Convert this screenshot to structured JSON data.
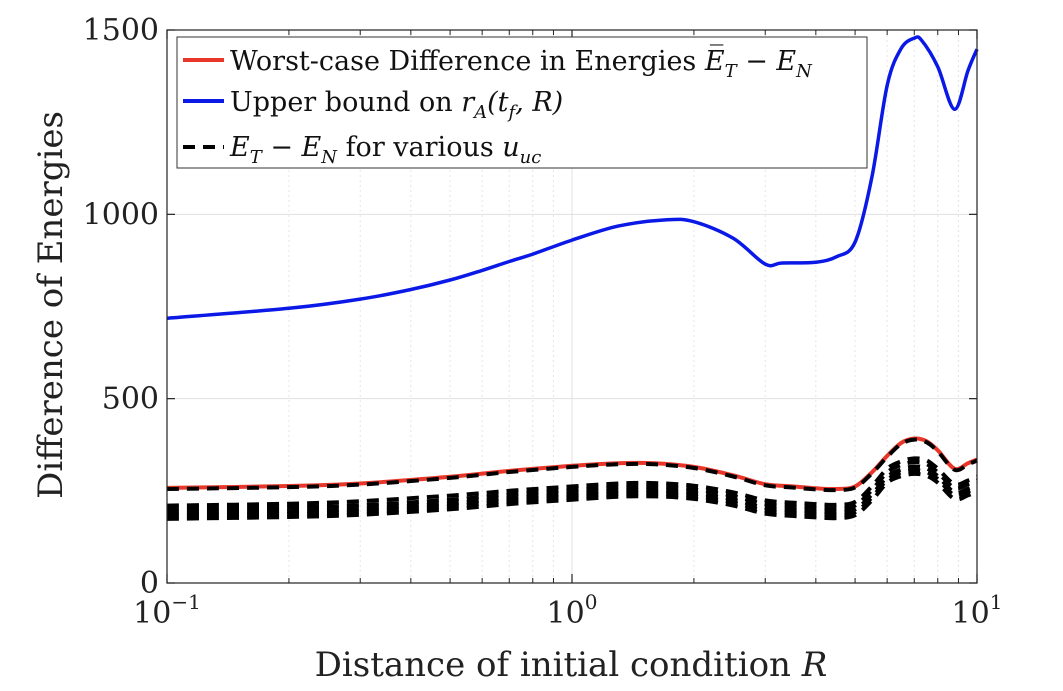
{
  "chart_data": {
    "type": "line",
    "title": "",
    "xlabel_text": "Distance of initial condition ",
    "xlabel_var": "R",
    "ylabel": "Difference of Energies",
    "x_scale": "log",
    "xlim": [
      0.1,
      10
    ],
    "ylim": [
      0,
      1500
    ],
    "x_ticks": [
      0.1,
      1,
      10
    ],
    "x_tick_base": "10",
    "x_tick_exponents": [
      "−1",
      "0",
      "1"
    ],
    "y_ticks": [
      0,
      500,
      1000,
      1500
    ],
    "y_tick_labels": [
      "0",
      "500",
      "1000",
      "1500"
    ],
    "grid": true,
    "legend_position": "top-left",
    "legend": [
      {
        "text": "Worst-case Difference in Energies ",
        "math": "E̅",
        "math_sub": "T",
        "math_rest": " − E",
        "math_sub2": "N"
      },
      {
        "text": "Upper bound on ",
        "math": "r",
        "math_sub": "A",
        "math_rest": "(t",
        "math_sub2": "f",
        "math_tail": ", R)"
      },
      {
        "text": " for various ",
        "lead_math": "E",
        "lead_sub": "T",
        "lead_rest": " − E",
        "lead_sub2": "N",
        "trail_math": "u",
        "trail_sub": "uc"
      }
    ],
    "colors": {
      "worst_case": "#e8372a",
      "upper_bound": "#0a19e6",
      "various": "#000000"
    },
    "series": [
      {
        "id": "upper_bound",
        "style": "solid",
        "x": [
          0.1,
          0.2,
          0.3,
          0.4,
          0.5,
          0.6,
          0.7,
          0.8,
          1.0,
          1.3,
          1.7,
          2.0,
          2.5,
          3.0,
          3.3,
          4.0,
          4.5,
          5.0,
          5.5,
          6.0,
          6.5,
          7.0,
          7.3,
          8.0,
          8.8,
          9.5,
          10.0
        ],
        "y": [
          718,
          745,
          770,
          796,
          822,
          848,
          872,
          892,
          930,
          968,
          985,
          980,
          935,
          865,
          868,
          870,
          885,
          925,
          1100,
          1350,
          1450,
          1478,
          1472,
          1400,
          1285,
          1390,
          1448
        ]
      },
      {
        "id": "worst_case",
        "style": "solid",
        "x": [
          0.1,
          0.2,
          0.3,
          0.5,
          0.7,
          1.0,
          1.3,
          1.6,
          2.0,
          2.5,
          3.0,
          3.5,
          4.0,
          4.5,
          5.0,
          5.5,
          6.0,
          6.5,
          7.0,
          7.5,
          8.0,
          8.8,
          9.5,
          10.0
        ],
        "y": [
          258,
          263,
          270,
          288,
          304,
          318,
          325,
          325,
          315,
          292,
          268,
          262,
          257,
          255,
          262,
          300,
          345,
          380,
          392,
          385,
          360,
          310,
          325,
          335
        ]
      },
      {
        "id": "various_1",
        "style": "dashed",
        "x": [
          0.1,
          0.2,
          0.3,
          0.5,
          0.7,
          1.0,
          1.3,
          1.6,
          2.0,
          2.5,
          3.0,
          3.5,
          4.0,
          4.5,
          5.0,
          5.5,
          6.0,
          6.5,
          7.0,
          7.5,
          8.0,
          8.8,
          9.5,
          10.0
        ],
        "y": [
          255,
          260,
          267,
          285,
          301,
          315,
          322,
          322,
          312,
          289,
          265,
          259,
          254,
          252,
          259,
          297,
          342,
          377,
          389,
          382,
          357,
          307,
          322,
          332
        ]
      },
      {
        "id": "various_2",
        "style": "dashed",
        "x": [
          0.1,
          0.2,
          0.3,
          0.5,
          0.7,
          1.0,
          1.3,
          1.6,
          2.0,
          2.5,
          3.0,
          3.5,
          4.0,
          4.5,
          5.0,
          5.5,
          6.0,
          6.5,
          7.0,
          7.5,
          8.0,
          8.8,
          9.5,
          10.0
        ],
        "y": [
          210,
          215,
          222,
          237,
          250,
          262,
          270,
          271,
          264,
          246,
          224,
          218,
          214,
          212,
          220,
          262,
          310,
          330,
          338,
          333,
          310,
          268,
          278,
          288
        ]
      },
      {
        "id": "various_3",
        "style": "dashed",
        "x": [
          0.1,
          0.2,
          0.3,
          0.5,
          0.7,
          1.0,
          1.3,
          1.6,
          2.0,
          2.5,
          3.0,
          3.5,
          4.0,
          4.5,
          5.0,
          5.5,
          6.0,
          6.5,
          7.0,
          7.5,
          8.0,
          8.8,
          9.5,
          10.0
        ],
        "y": [
          200,
          205,
          211,
          226,
          240,
          252,
          260,
          261,
          254,
          236,
          214,
          208,
          204,
          202,
          210,
          252,
          300,
          320,
          328,
          323,
          300,
          258,
          268,
          278
        ]
      },
      {
        "id": "various_4",
        "style": "dashed",
        "x": [
          0.1,
          0.2,
          0.3,
          0.5,
          0.7,
          1.0,
          1.3,
          1.6,
          2.0,
          2.5,
          3.0,
          3.5,
          4.0,
          4.5,
          5.0,
          5.5,
          6.0,
          6.5,
          7.0,
          7.5,
          8.0,
          8.8,
          9.5,
          10.0
        ],
        "y": [
          190,
          195,
          201,
          216,
          230,
          242,
          250,
          251,
          244,
          226,
          204,
          198,
          194,
          192,
          200,
          240,
          288,
          308,
          316,
          311,
          290,
          246,
          256,
          266
        ]
      },
      {
        "id": "various_5",
        "style": "dashed",
        "x": [
          0.1,
          0.2,
          0.3,
          0.5,
          0.7,
          1.0,
          1.3,
          1.6,
          2.0,
          2.5,
          3.0,
          3.5,
          4.0,
          4.5,
          5.0,
          5.5,
          6.0,
          6.5,
          7.0,
          7.5,
          8.0,
          8.8,
          9.5,
          10.0
        ],
        "y": [
          182,
          187,
          193,
          208,
          222,
          234,
          242,
          243,
          236,
          218,
          196,
          190,
          186,
          184,
          192,
          232,
          280,
          300,
          306,
          301,
          282,
          238,
          248,
          258
        ]
      },
      {
        "id": "various_6",
        "style": "dashed",
        "x": [
          0.1,
          0.2,
          0.3,
          0.5,
          0.7,
          1.0,
          1.3,
          1.6,
          2.0,
          2.5,
          3.0,
          3.5,
          4.0,
          4.5,
          5.0,
          5.5,
          6.0,
          6.5,
          7.0,
          7.5,
          8.0,
          8.8,
          9.5,
          10.0
        ],
        "y": [
          174,
          179,
          185,
          200,
          214,
          226,
          234,
          235,
          228,
          210,
          188,
          182,
          178,
          176,
          184,
          224,
          272,
          290,
          296,
          291,
          272,
          228,
          238,
          248
        ]
      }
    ]
  }
}
